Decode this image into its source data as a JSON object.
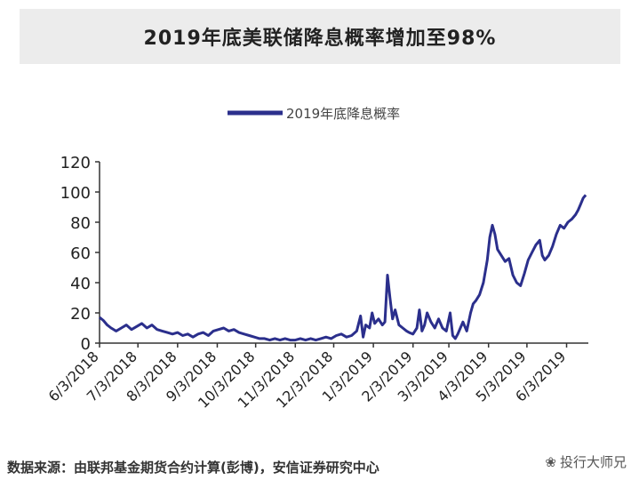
{
  "chart_data": {
    "type": "line",
    "title": "2019年底美联储降息概率增加至98%",
    "ylim": [
      0,
      120
    ],
    "yticks": [
      0,
      20,
      40,
      60,
      80,
      100,
      120
    ],
    "xlim": [
      "2018-06-03",
      "2019-06-20"
    ],
    "xtick_labels": [
      "6/3/2018",
      "7/3/2018",
      "8/3/2018",
      "9/3/2018",
      "10/3/2018",
      "11/3/2018",
      "12/3/2018",
      "1/3/2019",
      "2/3/2019",
      "3/3/2019",
      "4/3/2019",
      "5/3/2019",
      "6/3/2019"
    ],
    "xtick_dates": [
      "2018-06-03",
      "2018-07-03",
      "2018-08-03",
      "2018-09-03",
      "2018-10-03",
      "2018-11-03",
      "2018-12-03",
      "2019-01-03",
      "2019-02-03",
      "2019-03-03",
      "2019-04-03",
      "2019-05-03",
      "2019-06-03"
    ],
    "legend_position": "top-center",
    "line_color": "#2b2f8c",
    "series": [
      {
        "name": "2019年底降息概率",
        "points": [
          [
            "2018-06-03",
            17
          ],
          [
            "2018-06-06",
            15
          ],
          [
            "2018-06-09",
            12
          ],
          [
            "2018-06-12",
            10
          ],
          [
            "2018-06-16",
            8
          ],
          [
            "2018-06-20",
            10
          ],
          [
            "2018-06-24",
            12
          ],
          [
            "2018-06-28",
            9
          ],
          [
            "2018-07-02",
            11
          ],
          [
            "2018-07-06",
            13
          ],
          [
            "2018-07-10",
            10
          ],
          [
            "2018-07-14",
            12
          ],
          [
            "2018-07-18",
            9
          ],
          [
            "2018-07-22",
            8
          ],
          [
            "2018-07-26",
            7
          ],
          [
            "2018-07-30",
            6
          ],
          [
            "2018-08-03",
            7
          ],
          [
            "2018-08-07",
            5
          ],
          [
            "2018-08-11",
            6
          ],
          [
            "2018-08-15",
            4
          ],
          [
            "2018-08-19",
            6
          ],
          [
            "2018-08-23",
            7
          ],
          [
            "2018-08-27",
            5
          ],
          [
            "2018-08-31",
            8
          ],
          [
            "2018-09-04",
            9
          ],
          [
            "2018-09-08",
            10
          ],
          [
            "2018-09-12",
            8
          ],
          [
            "2018-09-16",
            9
          ],
          [
            "2018-09-20",
            7
          ],
          [
            "2018-09-24",
            6
          ],
          [
            "2018-09-28",
            5
          ],
          [
            "2018-10-02",
            4
          ],
          [
            "2018-10-06",
            3
          ],
          [
            "2018-10-10",
            3
          ],
          [
            "2018-10-14",
            2
          ],
          [
            "2018-10-18",
            3
          ],
          [
            "2018-10-22",
            2
          ],
          [
            "2018-10-26",
            3
          ],
          [
            "2018-10-30",
            2
          ],
          [
            "2018-11-03",
            2
          ],
          [
            "2018-11-07",
            3
          ],
          [
            "2018-11-11",
            2
          ],
          [
            "2018-11-15",
            3
          ],
          [
            "2018-11-19",
            2
          ],
          [
            "2018-11-23",
            3
          ],
          [
            "2018-11-27",
            4
          ],
          [
            "2018-12-01",
            3
          ],
          [
            "2018-12-05",
            5
          ],
          [
            "2018-12-09",
            6
          ],
          [
            "2018-12-13",
            4
          ],
          [
            "2018-12-17",
            5
          ],
          [
            "2018-12-21",
            8
          ],
          [
            "2018-12-24",
            18
          ],
          [
            "2018-12-26",
            4
          ],
          [
            "2018-12-28",
            12
          ],
          [
            "2018-12-31",
            10
          ],
          [
            "2019-01-02",
            20
          ],
          [
            "2019-01-04",
            13
          ],
          [
            "2019-01-07",
            16
          ],
          [
            "2019-01-10",
            12
          ],
          [
            "2019-01-12",
            14
          ],
          [
            "2019-01-14",
            45
          ],
          [
            "2019-01-16",
            30
          ],
          [
            "2019-01-18",
            16
          ],
          [
            "2019-01-20",
            22
          ],
          [
            "2019-01-23",
            12
          ],
          [
            "2019-01-26",
            10
          ],
          [
            "2019-01-29",
            8
          ],
          [
            "2019-01-31",
            7
          ],
          [
            "2019-02-03",
            6
          ],
          [
            "2019-02-06",
            10
          ],
          [
            "2019-02-08",
            22
          ],
          [
            "2019-02-10",
            8
          ],
          [
            "2019-02-12",
            12
          ],
          [
            "2019-02-14",
            20
          ],
          [
            "2019-02-17",
            14
          ],
          [
            "2019-02-20",
            10
          ],
          [
            "2019-02-23",
            16
          ],
          [
            "2019-02-26",
            10
          ],
          [
            "2019-03-01",
            8
          ],
          [
            "2019-03-04",
            20
          ],
          [
            "2019-03-06",
            5
          ],
          [
            "2019-03-08",
            3
          ],
          [
            "2019-03-10",
            6
          ],
          [
            "2019-03-12",
            10
          ],
          [
            "2019-03-14",
            14
          ],
          [
            "2019-03-17",
            8
          ],
          [
            "2019-03-20",
            20
          ],
          [
            "2019-03-22",
            26
          ],
          [
            "2019-03-24",
            28
          ],
          [
            "2019-03-27",
            32
          ],
          [
            "2019-03-30",
            40
          ],
          [
            "2019-04-02",
            55
          ],
          [
            "2019-04-04",
            70
          ],
          [
            "2019-04-06",
            78
          ],
          [
            "2019-04-08",
            72
          ],
          [
            "2019-04-10",
            62
          ],
          [
            "2019-04-13",
            58
          ],
          [
            "2019-04-16",
            54
          ],
          [
            "2019-04-19",
            56
          ],
          [
            "2019-04-22",
            45
          ],
          [
            "2019-04-25",
            40
          ],
          [
            "2019-04-28",
            38
          ],
          [
            "2019-05-01",
            46
          ],
          [
            "2019-05-04",
            55
          ],
          [
            "2019-05-07",
            60
          ],
          [
            "2019-05-10",
            65
          ],
          [
            "2019-05-13",
            68
          ],
          [
            "2019-05-15",
            58
          ],
          [
            "2019-05-17",
            55
          ],
          [
            "2019-05-20",
            58
          ],
          [
            "2019-05-23",
            64
          ],
          [
            "2019-05-26",
            72
          ],
          [
            "2019-05-29",
            78
          ],
          [
            "2019-06-01",
            76
          ],
          [
            "2019-06-04",
            80
          ],
          [
            "2019-06-07",
            82
          ],
          [
            "2019-06-10",
            85
          ],
          [
            "2019-06-12",
            88
          ],
          [
            "2019-06-14",
            92
          ],
          [
            "2019-06-16",
            96
          ],
          [
            "2019-06-18",
            98
          ]
        ]
      }
    ]
  },
  "source_label": "数据来源：由联邦基金期货合约计算(彭博)，安信证券研究中心",
  "watermark": {
    "icon": "wechat-icon",
    "text": "投行大师兄"
  }
}
